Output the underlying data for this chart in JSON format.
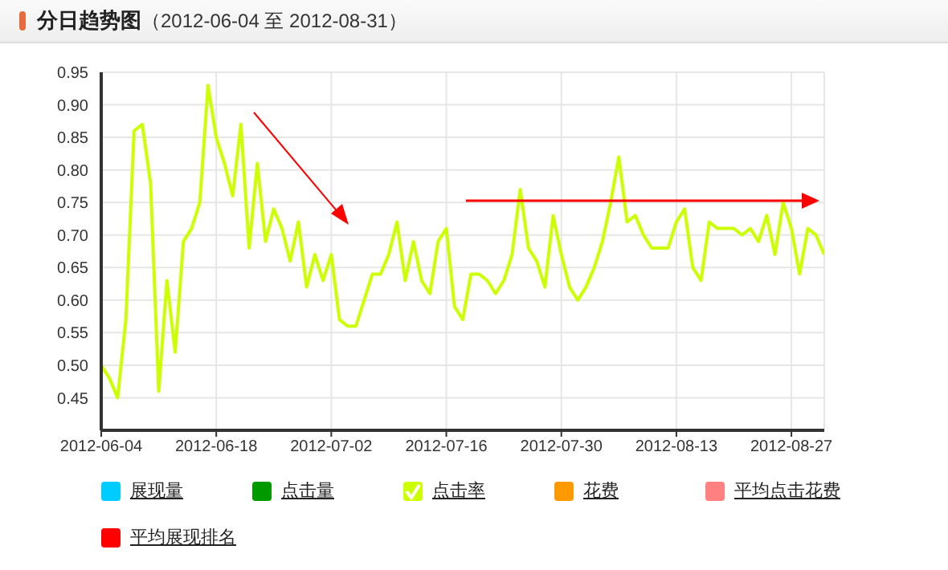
{
  "chart_data": {
    "type": "line",
    "title": "分日趋势图",
    "subtitle": "（2012-06-04 至 2012-08-31）",
    "x": [
      "2012-06-04",
      "2012-06-05",
      "2012-06-06",
      "2012-06-07",
      "2012-06-08",
      "2012-06-09",
      "2012-06-10",
      "2012-06-11",
      "2012-06-12",
      "2012-06-13",
      "2012-06-14",
      "2012-06-15",
      "2012-06-16",
      "2012-06-17",
      "2012-06-18",
      "2012-06-19",
      "2012-06-20",
      "2012-06-21",
      "2012-06-22",
      "2012-06-23",
      "2012-06-24",
      "2012-06-25",
      "2012-06-26",
      "2012-06-27",
      "2012-06-28",
      "2012-06-29",
      "2012-06-30",
      "2012-07-01",
      "2012-07-02",
      "2012-07-03",
      "2012-07-04",
      "2012-07-05",
      "2012-07-06",
      "2012-07-07",
      "2012-07-08",
      "2012-07-09",
      "2012-07-10",
      "2012-07-11",
      "2012-07-12",
      "2012-07-13",
      "2012-07-14",
      "2012-07-15",
      "2012-07-16",
      "2012-07-17",
      "2012-07-18",
      "2012-07-19",
      "2012-07-20",
      "2012-07-21",
      "2012-07-22",
      "2012-07-23",
      "2012-07-24",
      "2012-07-25",
      "2012-07-26",
      "2012-07-27",
      "2012-07-28",
      "2012-07-29",
      "2012-07-30",
      "2012-07-31",
      "2012-08-01",
      "2012-08-02",
      "2012-08-03",
      "2012-08-04",
      "2012-08-05",
      "2012-08-06",
      "2012-08-07",
      "2012-08-08",
      "2012-08-09",
      "2012-08-10",
      "2012-08-11",
      "2012-08-12",
      "2012-08-13",
      "2012-08-14",
      "2012-08-15",
      "2012-08-16",
      "2012-08-17",
      "2012-08-18",
      "2012-08-19",
      "2012-08-20",
      "2012-08-21",
      "2012-08-22",
      "2012-08-23",
      "2012-08-24",
      "2012-08-25",
      "2012-08-26",
      "2012-08-27",
      "2012-08-28",
      "2012-08-29",
      "2012-08-30",
      "2012-08-31"
    ],
    "xlim": [
      "2012-06-04",
      "2012-08-31"
    ],
    "xticks": [
      "2012-06-04",
      "2012-06-18",
      "2012-07-02",
      "2012-07-16",
      "2012-07-30",
      "2012-08-13",
      "2012-08-27"
    ],
    "ylim": [
      0.4,
      0.95
    ],
    "yticks": [
      0.45,
      {
        "value": 0.5,
        "label": "0.50"
      },
      0.55,
      {
        "value": 0.6,
        "label": "0.60"
      },
      0.65,
      {
        "value": 0.7,
        "label": "0.70"
      },
      0.75,
      {
        "value": 0.8,
        "label": "0.80"
      },
      0.85,
      {
        "value": 0.9,
        "label": "0.90"
      },
      0.95
    ],
    "grid": true,
    "legend": "bottom",
    "marker": "none",
    "line_style": "solid",
    "series": [
      {
        "name": "展现量",
        "color": "#00ccff",
        "values": [
          null,
          null,
          null,
          null,
          null,
          null,
          null,
          null,
          null,
          null,
          null,
          null,
          null,
          null,
          null,
          null,
          null,
          null,
          null,
          null,
          null,
          null,
          null,
          null,
          null,
          null,
          null,
          null,
          null,
          null,
          null,
          null,
          null,
          null,
          null,
          null,
          null,
          null,
          null,
          null,
          null,
          null,
          null,
          null,
          null,
          null,
          null,
          null,
          null,
          null,
          null,
          null,
          null,
          null,
          null,
          null,
          null,
          null,
          null,
          null,
          null,
          null,
          null,
          null,
          null,
          null,
          null,
          null,
          null,
          null,
          null,
          null,
          null,
          null,
          null,
          null,
          null,
          null,
          null,
          null,
          null,
          null,
          null,
          null,
          null,
          null,
          null,
          null,
          null
        ]
      },
      {
        "name": "点击量",
        "color": "#009900",
        "values": [
          null,
          null,
          null,
          null,
          null,
          null,
          null,
          null,
          null,
          null,
          null,
          null,
          null,
          null,
          null,
          null,
          null,
          null,
          null,
          null,
          null,
          null,
          null,
          null,
          null,
          null,
          null,
          null,
          null,
          null,
          null,
          null,
          null,
          null,
          null,
          null,
          null,
          null,
          null,
          null,
          null,
          null,
          null,
          null,
          null,
          null,
          null,
          null,
          null,
          null,
          null,
          null,
          null,
          null,
          null,
          null,
          null,
          null,
          null,
          null,
          null,
          null,
          null,
          null,
          null,
          null,
          null,
          null,
          null,
          null,
          null,
          null,
          null,
          null,
          null,
          null,
          null,
          null,
          null,
          null,
          null,
          null,
          null,
          null,
          null,
          null,
          null,
          null,
          null
        ]
      },
      {
        "name": "点击率",
        "color": "#ccff00",
        "values": [
          0.5,
          0.48,
          0.45,
          0.57,
          0.86,
          0.87,
          0.78,
          0.46,
          0.63,
          0.52,
          0.69,
          0.71,
          0.75,
          0.93,
          0.85,
          0.81,
          0.76,
          0.87,
          0.68,
          0.81,
          0.69,
          0.74,
          0.71,
          0.66,
          0.72,
          0.62,
          0.67,
          0.63,
          0.67,
          0.57,
          0.56,
          0.56,
          0.6,
          0.64,
          0.64,
          0.67,
          0.72,
          0.63,
          0.69,
          0.63,
          0.61,
          0.69,
          0.71,
          0.59,
          0.57,
          0.64,
          0.64,
          0.63,
          0.61,
          0.63,
          0.67,
          0.77,
          0.68,
          0.66,
          0.62,
          0.73,
          0.67,
          0.62,
          0.6,
          0.62,
          0.65,
          0.69,
          0.75,
          0.82,
          0.72,
          0.73,
          0.7,
          0.68,
          0.68,
          0.68,
          0.72,
          0.74,
          0.65,
          0.63,
          0.72,
          0.71,
          0.71,
          0.71,
          0.7,
          0.71,
          0.69,
          0.73,
          0.67,
          0.75,
          0.71,
          0.64,
          0.71,
          0.7,
          0.67
        ]
      },
      {
        "name": "花费",
        "color": "#ff9900",
        "values": [
          null,
          null,
          null,
          null,
          null,
          null,
          null,
          null,
          null,
          null,
          null,
          null,
          null,
          null,
          null,
          null,
          null,
          null,
          null,
          null,
          null,
          null,
          null,
          null,
          null,
          null,
          null,
          null,
          null,
          null,
          null,
          null,
          null,
          null,
          null,
          null,
          null,
          null,
          null,
          null,
          null,
          null,
          null,
          null,
          null,
          null,
          null,
          null,
          null,
          null,
          null,
          null,
          null,
          null,
          null,
          null,
          null,
          null,
          null,
          null,
          null,
          null,
          null,
          null,
          null,
          null,
          null,
          null,
          null,
          null,
          null,
          null,
          null,
          null,
          null,
          null,
          null,
          null,
          null,
          null,
          null,
          null,
          null,
          null,
          null,
          null,
          null,
          null,
          null
        ]
      },
      {
        "name": "平均点击花费",
        "color": "#ff8080",
        "values": [
          null,
          null,
          null,
          null,
          null,
          null,
          null,
          null,
          null,
          null,
          null,
          null,
          null,
          null,
          null,
          null,
          null,
          null,
          null,
          null,
          null,
          null,
          null,
          null,
          null,
          null,
          null,
          null,
          null,
          null,
          null,
          null,
          null,
          null,
          null,
          null,
          null,
          null,
          null,
          null,
          null,
          null,
          null,
          null,
          null,
          null,
          null,
          null,
          null,
          null,
          null,
          null,
          null,
          null,
          null,
          null,
          null,
          null,
          null,
          null,
          null,
          null,
          null,
          null,
          null,
          null,
          null,
          null,
          null,
          null,
          null,
          null,
          null,
          null,
          null,
          null,
          null,
          null,
          null,
          null,
          null,
          null,
          null,
          null,
          null,
          null,
          null,
          null,
          null
        ]
      },
      {
        "name": "平均展现排名",
        "color": "#ff0000",
        "values": [
          null,
          null,
          null,
          null,
          null,
          null,
          null,
          null,
          null,
          null,
          null,
          null,
          null,
          null,
          null,
          null,
          null,
          null,
          null,
          null,
          null,
          null,
          null,
          null,
          null,
          null,
          null,
          null,
          null,
          null,
          null,
          null,
          null,
          null,
          null,
          null,
          null,
          null,
          null,
          null,
          null,
          null,
          null,
          null,
          null,
          null,
          null,
          null,
          null,
          null,
          null,
          null,
          null,
          null,
          null,
          null,
          null,
          null,
          null,
          null,
          null,
          null,
          null,
          null,
          null,
          null,
          null,
          null,
          null,
          null,
          null,
          null,
          null,
          null,
          null,
          null,
          null,
          null,
          null,
          null,
          null,
          null,
          null,
          null,
          null,
          null,
          null,
          null,
          null
        ]
      }
    ]
  }
}
